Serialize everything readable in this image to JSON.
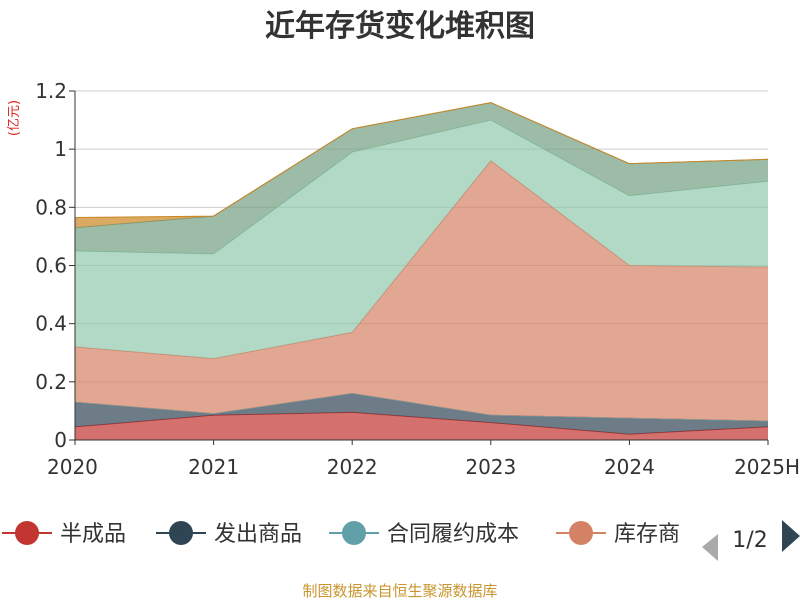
{
  "chart_data": {
    "type": "area",
    "stacked": true,
    "title": "近年存货变化堆积图",
    "unit": "(亿元)",
    "categories": [
      "2020",
      "2021",
      "2022",
      "2023",
      "2024",
      "2025H"
    ],
    "yticks": [
      "0",
      "0.2",
      "0.4",
      "0.6",
      "0.8",
      "1",
      "1.2"
    ],
    "ylim": [
      0,
      1.2
    ],
    "grid": true,
    "series": [
      {
        "name": "半成品",
        "color": "#c23531",
        "values": [
          0.045,
          0.085,
          0.095,
          0.06,
          0.02,
          0.045
        ]
      },
      {
        "name": "发出商品",
        "color": "#2f4554",
        "values": [
          0.085,
          0.005,
          0.065,
          0.025,
          0.055,
          0.02
        ]
      },
      {
        "name": "合同履约成本",
        "color": "#61a0a8",
        "values": [
          0.0,
          0.0,
          0.0,
          0.0,
          0.0,
          0.0
        ]
      },
      {
        "name": "库存商品",
        "color": "#d48265",
        "values": [
          0.19,
          0.19,
          0.21,
          0.875,
          0.525,
          0.53
        ]
      },
      {
        "name": "",
        "color": "#91c7ae",
        "values": [
          0.33,
          0.36,
          0.62,
          0.14,
          0.24,
          0.295
        ]
      },
      {
        "name": "",
        "color": "#749f83",
        "values": [
          0.08,
          0.13,
          0.08,
          0.06,
          0.11,
          0.075
        ]
      },
      {
        "name": "",
        "color": "#ca8622",
        "values": [
          0.035,
          0.0,
          0.0,
          0.0,
          0.0,
          0.0
        ]
      }
    ],
    "legend": {
      "position": "bottom",
      "visible_items": [
        "半成品",
        "发出商品",
        "合同履约成本",
        "库存商"
      ],
      "page": "1/2"
    },
    "source": "制图数据来自恒生聚源数据库"
  }
}
